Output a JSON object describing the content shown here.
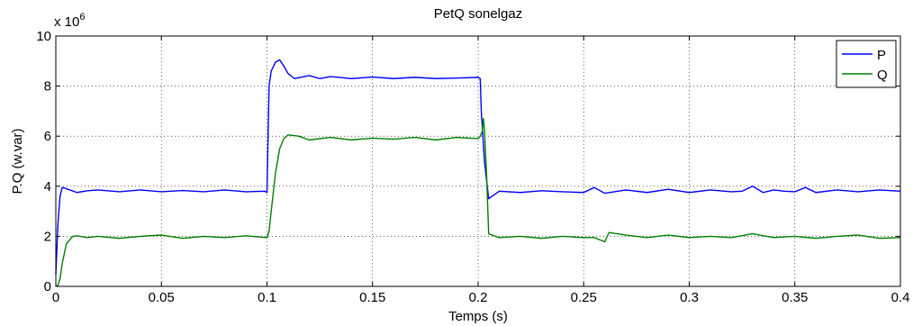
{
  "chart_data": {
    "type": "line",
    "title": "PetQ sonelgaz",
    "xlabel": "Temps (s)",
    "ylabel": "P.Q (w.var)",
    "y_multiplier": {
      "base": "x 10",
      "exponent": "6"
    },
    "xlim": [
      0,
      0.4
    ],
    "ylim": [
      0,
      10
    ],
    "x_ticks": [
      0,
      0.05,
      0.1,
      0.15,
      0.2,
      0.25,
      0.3,
      0.35,
      0.4
    ],
    "x_tick_labels": [
      "0",
      "0.05",
      "0.1",
      "0.15",
      "0.2",
      "0.25",
      "0.3",
      "0.35",
      "0.4"
    ],
    "y_ticks": [
      0,
      2,
      4,
      6,
      8,
      10
    ],
    "y_tick_labels": [
      "0",
      "2",
      "4",
      "6",
      "8",
      "10"
    ],
    "grid": true,
    "legend_position": "top-right",
    "series": [
      {
        "name": "P",
        "color": "#0000ff",
        "x": [
          0,
          0.001,
          0.002,
          0.003,
          0.005,
          0.01,
          0.015,
          0.02,
          0.03,
          0.04,
          0.05,
          0.06,
          0.07,
          0.08,
          0.09,
          0.099,
          0.1,
          0.101,
          0.102,
          0.104,
          0.106,
          0.108,
          0.11,
          0.113,
          0.116,
          0.12,
          0.125,
          0.13,
          0.14,
          0.15,
          0.16,
          0.17,
          0.18,
          0.19,
          0.2,
          0.201,
          0.2015,
          0.203,
          0.205,
          0.21,
          0.22,
          0.23,
          0.24,
          0.25,
          0.255,
          0.26,
          0.27,
          0.28,
          0.29,
          0.3,
          0.31,
          0.32,
          0.325,
          0.33,
          0.335,
          0.34,
          0.345,
          0.35,
          0.355,
          0.36,
          0.37,
          0.38,
          0.39,
          0.4
        ],
        "y": [
          0.5,
          2.5,
          3.6,
          3.95,
          3.9,
          3.75,
          3.82,
          3.85,
          3.78,
          3.85,
          3.78,
          3.83,
          3.78,
          3.85,
          3.78,
          3.8,
          3.75,
          8.0,
          8.6,
          8.95,
          9.05,
          8.8,
          8.5,
          8.3,
          8.35,
          8.42,
          8.3,
          8.38,
          8.3,
          8.36,
          8.3,
          8.35,
          8.3,
          8.32,
          8.35,
          8.3,
          7.0,
          5.0,
          3.5,
          3.8,
          3.75,
          3.82,
          3.78,
          3.75,
          3.95,
          3.72,
          3.85,
          3.75,
          3.88,
          3.75,
          3.85,
          3.78,
          3.8,
          4.0,
          3.75,
          3.85,
          3.8,
          3.78,
          3.95,
          3.75,
          3.85,
          3.78,
          3.85,
          3.8
        ]
      },
      {
        "name": "Q",
        "color": "#008000",
        "x": [
          0,
          0.001,
          0.002,
          0.003,
          0.005,
          0.008,
          0.01,
          0.015,
          0.02,
          0.03,
          0.04,
          0.05,
          0.06,
          0.07,
          0.08,
          0.09,
          0.1,
          0.101,
          0.102,
          0.104,
          0.106,
          0.108,
          0.11,
          0.115,
          0.12,
          0.13,
          0.14,
          0.15,
          0.16,
          0.17,
          0.18,
          0.19,
          0.2,
          0.201,
          0.202,
          0.2025,
          0.203,
          0.204,
          0.205,
          0.21,
          0.22,
          0.23,
          0.24,
          0.25,
          0.255,
          0.26,
          0.262,
          0.27,
          0.28,
          0.29,
          0.3,
          0.31,
          0.32,
          0.33,
          0.34,
          0.35,
          0.36,
          0.37,
          0.38,
          0.39,
          0.4
        ],
        "y": [
          0,
          0.05,
          0.3,
          0.9,
          1.7,
          2.0,
          2.02,
          1.95,
          2.0,
          1.92,
          2.0,
          2.05,
          1.92,
          2.0,
          1.95,
          2.02,
          1.95,
          2.2,
          3.0,
          4.5,
          5.5,
          5.9,
          6.05,
          6.0,
          5.85,
          5.95,
          5.85,
          5.92,
          5.88,
          5.95,
          5.85,
          5.95,
          5.9,
          6.0,
          6.2,
          6.7,
          6.3,
          4.5,
          2.1,
          1.95,
          2.0,
          1.92,
          2.0,
          1.95,
          1.95,
          1.78,
          2.15,
          2.05,
          1.95,
          2.05,
          1.95,
          2.0,
          1.95,
          2.1,
          1.95,
          2.0,
          1.92,
          2.0,
          2.05,
          1.92,
          1.95
        ]
      }
    ]
  }
}
